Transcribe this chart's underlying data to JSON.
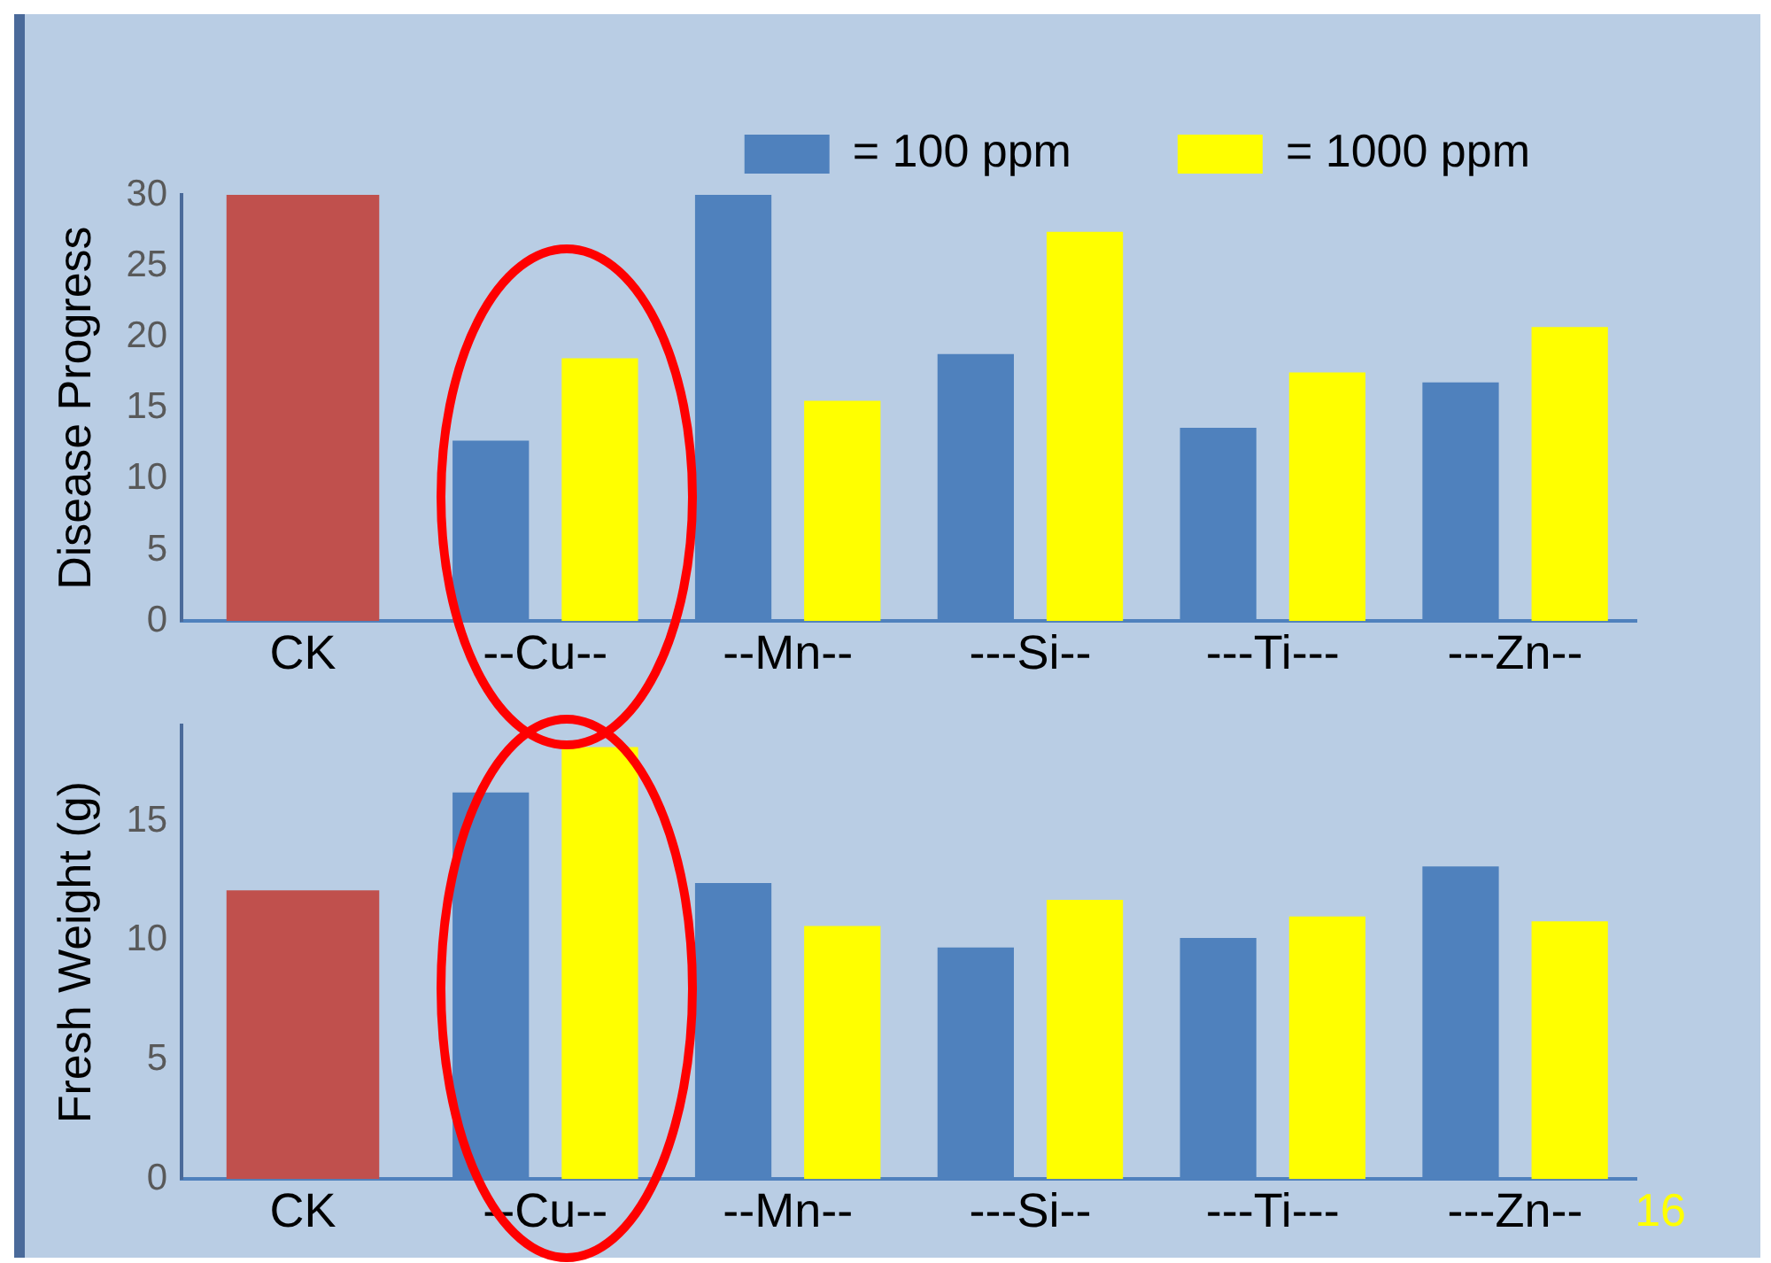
{
  "chart_data": [
    {
      "type": "bar",
      "ylabel": "Disease Progress",
      "categories": [
        "CK",
        "--Cu--",
        "--Mn--",
        "---Si--",
        "---Ti---",
        "---Zn--"
      ],
      "ylim": [
        0,
        30
      ],
      "yticks": [
        0,
        5,
        10,
        15,
        20,
        25,
        30
      ],
      "grid": false,
      "legend": "top right",
      "series": [
        {
          "color": "#c0504d",
          "values": [
            30,
            null,
            null,
            null,
            null,
            null
          ]
        },
        {
          "name": "= 100 ppm",
          "color": "#4f81bd",
          "values": [
            null,
            12.7,
            30,
            18.8,
            13.6,
            16.8
          ]
        },
        {
          "name": "= 1000 ppm",
          "color": "#ffff00",
          "values": [
            null,
            18.5,
            15.5,
            27.4,
            17.5,
            20.7
          ]
        }
      ]
    },
    {
      "type": "bar",
      "ylabel": "Fresh Weight (g)",
      "categories": [
        "CK",
        "--Cu--",
        "--Mn--",
        "---Si--",
        "---Ti---",
        "---Zn--"
      ],
      "ylim": [
        0,
        19
      ],
      "yticks": [
        0,
        5,
        10,
        15
      ],
      "grid": false,
      "legend": false,
      "annotations": [
        "16"
      ],
      "series": [
        {
          "color": "#c0504d",
          "values": [
            12.1,
            null,
            null,
            null,
            null,
            null
          ]
        },
        {
          "color": "#4f81bd",
          "values": [
            null,
            16.2,
            12.4,
            9.7,
            10.1,
            13.1
          ]
        },
        {
          "color": "#ffff00",
          "values": [
            null,
            18.1,
            10.6,
            11.7,
            11.0,
            10.8
          ]
        }
      ]
    }
  ]
}
